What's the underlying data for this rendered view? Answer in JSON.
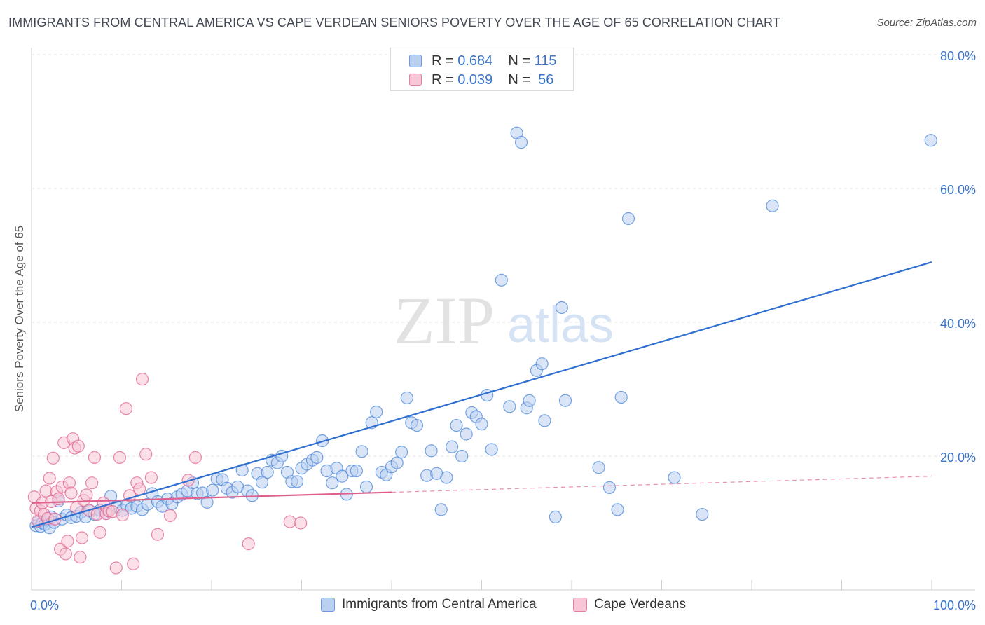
{
  "title": "IMMIGRANTS FROM CENTRAL AMERICA VS CAPE VERDEAN SENIORS POVERTY OVER THE AGE OF 65 CORRELATION CHART",
  "source": "Source: ZipAtlas.com",
  "watermark": {
    "zip": "ZIP",
    "atlas": "atlas"
  },
  "stats": [
    {
      "r_label": "R =",
      "r_value": "0.684",
      "n_label": "N =",
      "n_value": "115",
      "color": "#6c9be0",
      "fill": "#b9d0f1"
    },
    {
      "r_label": "R =",
      "r_value": "0.039",
      "n_label": "N =",
      "n_value": "56",
      "color": "#e87fa3",
      "fill": "#f8c6d6"
    }
  ],
  "legend": [
    {
      "label": "Immigrants from Central America",
      "color": "#6c9be0",
      "fill": "#b9d0f1"
    },
    {
      "label": "Cape Verdeans",
      "color": "#e87fa3",
      "fill": "#f8c6d6"
    }
  ],
  "chart_data": {
    "type": "scatter",
    "xlabel": "",
    "ylabel": "Seniors Poverty Over the Age of 65",
    "xlim": [
      0,
      100
    ],
    "ylim": [
      0,
      80
    ],
    "x_tick_labels": [
      "0.0%",
      "100.0%"
    ],
    "y_ticks": [
      20,
      40,
      60,
      80
    ],
    "y_tick_labels": [
      "20.0%",
      "40.0%",
      "60.0%",
      "80.0%"
    ],
    "grid": true,
    "series": [
      {
        "name": "Immigrants from Central America",
        "color": "#4a86d8",
        "fill": "#b9d0f1",
        "trend": {
          "x": [
            0,
            100
          ],
          "y": [
            9.4,
            49
          ]
        },
        "points": [
          [
            0.5,
            9.6
          ],
          [
            0.8,
            10.2
          ],
          [
            1.0,
            9.5
          ],
          [
            1.2,
            10.0
          ],
          [
            1.5,
            9.8
          ],
          [
            1.8,
            10.5
          ],
          [
            2.0,
            9.3
          ],
          [
            2.2,
            10.9
          ],
          [
            2.5,
            10.1
          ],
          [
            3.0,
            13.3
          ],
          [
            3.4,
            10.6
          ],
          [
            3.9,
            11.2
          ],
          [
            4.4,
            10.8
          ],
          [
            5.0,
            11.0
          ],
          [
            5.5,
            11.6
          ],
          [
            6.0,
            10.9
          ],
          [
            6.5,
            11.8
          ],
          [
            7.0,
            11.3
          ],
          [
            7.6,
            11.9
          ],
          [
            8.2,
            11.6
          ],
          [
            8.8,
            14.0
          ],
          [
            9.5,
            12.4
          ],
          [
            10.1,
            11.9
          ],
          [
            10.6,
            12.6
          ],
          [
            11.1,
            12.2
          ],
          [
            11.7,
            12.5
          ],
          [
            12.3,
            12.0
          ],
          [
            12.9,
            12.8
          ],
          [
            13.4,
            14.4
          ],
          [
            14.0,
            13.2
          ],
          [
            14.5,
            12.5
          ],
          [
            15.1,
            13.6
          ],
          [
            15.6,
            12.9
          ],
          [
            16.2,
            13.9
          ],
          [
            16.7,
            14.3
          ],
          [
            17.3,
            14.8
          ],
          [
            17.9,
            16.0
          ],
          [
            18.4,
            14.4
          ],
          [
            19.0,
            14.5
          ],
          [
            19.5,
            13.1
          ],
          [
            20.1,
            14.9
          ],
          [
            20.6,
            16.6
          ],
          [
            21.2,
            16.5
          ],
          [
            21.7,
            15.2
          ],
          [
            22.3,
            14.6
          ],
          [
            22.9,
            15.4
          ],
          [
            23.4,
            17.9
          ],
          [
            24.0,
            14.8
          ],
          [
            24.5,
            14.1
          ],
          [
            25.1,
            17.4
          ],
          [
            25.6,
            16.1
          ],
          [
            26.2,
            17.6
          ],
          [
            26.7,
            19.4
          ],
          [
            27.3,
            19.0
          ],
          [
            27.8,
            20.0
          ],
          [
            28.4,
            17.6
          ],
          [
            28.9,
            16.2
          ],
          [
            29.5,
            16.2
          ],
          [
            30.0,
            18.2
          ],
          [
            30.6,
            18.8
          ],
          [
            31.2,
            19.4
          ],
          [
            31.7,
            19.8
          ],
          [
            32.3,
            22.3
          ],
          [
            32.8,
            17.8
          ],
          [
            33.4,
            16.0
          ],
          [
            33.9,
            18.2
          ],
          [
            34.5,
            17.0
          ],
          [
            35.0,
            14.3
          ],
          [
            35.6,
            17.8
          ],
          [
            36.1,
            17.8
          ],
          [
            36.7,
            20.7
          ],
          [
            37.2,
            15.4
          ],
          [
            37.8,
            25.0
          ],
          [
            38.3,
            26.6
          ],
          [
            38.9,
            17.6
          ],
          [
            39.4,
            17.2
          ],
          [
            40.0,
            18.4
          ],
          [
            40.6,
            19.0
          ],
          [
            41.1,
            20.6
          ],
          [
            41.7,
            28.7
          ],
          [
            42.2,
            25.0
          ],
          [
            42.8,
            24.6
          ],
          [
            43.9,
            17.1
          ],
          [
            44.4,
            20.8
          ],
          [
            45.0,
            17.4
          ],
          [
            45.5,
            12.0
          ],
          [
            46.1,
            16.8
          ],
          [
            46.7,
            21.4
          ],
          [
            47.2,
            24.6
          ],
          [
            47.8,
            20.0
          ],
          [
            48.3,
            23.3
          ],
          [
            48.9,
            26.5
          ],
          [
            49.4,
            25.9
          ],
          [
            50.0,
            24.8
          ],
          [
            50.6,
            29.1
          ],
          [
            51.1,
            21.0
          ],
          [
            52.2,
            46.3
          ],
          [
            53.1,
            27.4
          ],
          [
            53.9,
            68.3
          ],
          [
            54.4,
            66.9
          ],
          [
            55.0,
            27.2
          ],
          [
            55.3,
            28.3
          ],
          [
            56.1,
            32.8
          ],
          [
            56.7,
            33.8
          ],
          [
            57.0,
            25.3
          ],
          [
            58.2,
            10.9
          ],
          [
            58.9,
            42.2
          ],
          [
            59.3,
            28.3
          ],
          [
            63.0,
            18.3
          ],
          [
            64.2,
            15.3
          ],
          [
            65.1,
            12.0
          ],
          [
            65.5,
            28.8
          ],
          [
            66.3,
            55.5
          ],
          [
            71.4,
            16.8
          ],
          [
            74.5,
            11.3
          ],
          [
            82.3,
            57.4
          ],
          [
            99.9,
            67.2
          ]
        ]
      },
      {
        "name": "Cape Verdeans",
        "color": "#e0608d",
        "fill": "#f8c6d6",
        "trend": {
          "x": [
            0,
            100
          ],
          "y": [
            13.0,
            17.0
          ],
          "solid_until": 40
        },
        "points": [
          [
            0.3,
            13.9
          ],
          [
            0.5,
            12.2
          ],
          [
            0.7,
            10.3
          ],
          [
            1.0,
            11.8
          ],
          [
            1.2,
            13.0
          ],
          [
            1.4,
            11.3
          ],
          [
            1.6,
            14.8
          ],
          [
            1.8,
            10.7
          ],
          [
            2.0,
            16.7
          ],
          [
            2.2,
            13.2
          ],
          [
            2.4,
            19.7
          ],
          [
            2.6,
            10.6
          ],
          [
            2.8,
            14.7
          ],
          [
            3.0,
            13.6
          ],
          [
            3.2,
            6.1
          ],
          [
            3.4,
            15.4
          ],
          [
            3.6,
            22.0
          ],
          [
            3.8,
            5.4
          ],
          [
            4.0,
            7.3
          ],
          [
            4.2,
            16.0
          ],
          [
            4.4,
            14.5
          ],
          [
            4.6,
            22.6
          ],
          [
            4.8,
            21.2
          ],
          [
            5.0,
            12.3
          ],
          [
            5.2,
            21.5
          ],
          [
            5.4,
            4.9
          ],
          [
            5.6,
            7.8
          ],
          [
            5.8,
            13.4
          ],
          [
            6.1,
            14.2
          ],
          [
            6.4,
            11.9
          ],
          [
            6.7,
            16.0
          ],
          [
            7.0,
            19.8
          ],
          [
            7.3,
            11.3
          ],
          [
            7.6,
            8.6
          ],
          [
            8.0,
            13.0
          ],
          [
            8.3,
            11.4
          ],
          [
            8.6,
            11.8
          ],
          [
            9.0,
            11.7
          ],
          [
            9.4,
            3.3
          ],
          [
            9.8,
            19.8
          ],
          [
            10.1,
            11.2
          ],
          [
            10.5,
            27.1
          ],
          [
            10.9,
            14.1
          ],
          [
            11.3,
            3.9
          ],
          [
            11.7,
            16.0
          ],
          [
            12.0,
            15.1
          ],
          [
            12.3,
            31.5
          ],
          [
            12.7,
            20.3
          ],
          [
            13.3,
            16.8
          ],
          [
            14.0,
            8.3
          ],
          [
            15.4,
            11.1
          ],
          [
            17.4,
            16.4
          ],
          [
            18.2,
            19.8
          ],
          [
            24.1,
            6.9
          ],
          [
            28.7,
            10.2
          ],
          [
            29.9,
            10.0
          ]
        ]
      }
    ]
  }
}
